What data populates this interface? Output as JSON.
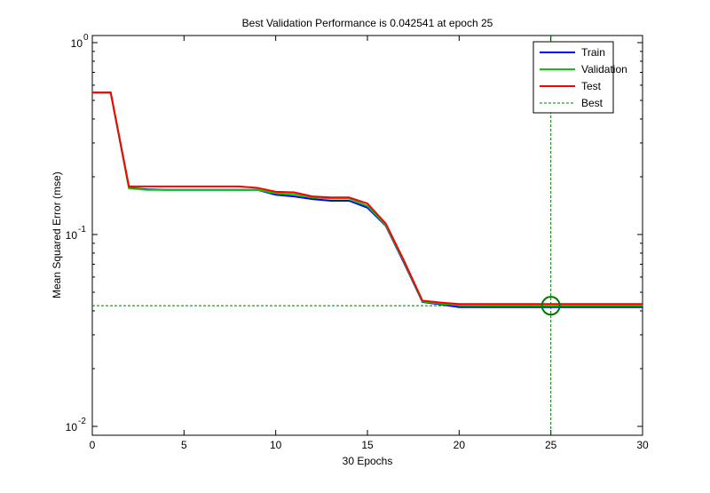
{
  "chart_data": {
    "type": "line",
    "title": "Best Validation Performance is 0.042541 at epoch 25",
    "xlabel": "30 Epochs",
    "ylabel": "Mean Squared Error  (mse)",
    "xlim": [
      0,
      30
    ],
    "ylim": [
      0.009,
      1.1
    ],
    "yscale": "log",
    "xticks": [
      0,
      5,
      10,
      15,
      20,
      25,
      30
    ],
    "xtick_labels": [
      "0",
      "5",
      "10",
      "15",
      "20",
      "25",
      "30"
    ],
    "yticks": [
      1,
      0.1,
      0.01
    ],
    "ytick_labels": [
      {
        "base": "10",
        "exp": "0"
      },
      {
        "base": "10",
        "exp": "-1"
      },
      {
        "base": "10",
        "exp": "-2"
      }
    ],
    "x": [
      0,
      1,
      2,
      3,
      4,
      5,
      6,
      7,
      8,
      9,
      10,
      11,
      12,
      13,
      14,
      15,
      16,
      17,
      18,
      19,
      20,
      21,
      22,
      23,
      24,
      25,
      26,
      27,
      28,
      29,
      30
    ],
    "series": [
      {
        "name": "Train",
        "color": "#0000ff",
        "values": [
          0.55,
          0.55,
          0.175,
          0.172,
          0.171,
          0.171,
          0.171,
          0.171,
          0.171,
          0.171,
          0.161,
          0.158,
          0.153,
          0.15,
          0.15,
          0.138,
          0.111,
          0.071,
          0.0445,
          0.0432,
          0.0418,
          0.0418,
          0.0418,
          0.0418,
          0.0418,
          0.0418,
          0.0418,
          0.0418,
          0.0418,
          0.0418,
          0.0418
        ]
      },
      {
        "name": "Validation",
        "color": "#00cc00",
        "values": [
          0.55,
          0.55,
          0.174,
          0.171,
          0.171,
          0.171,
          0.171,
          0.171,
          0.171,
          0.171,
          0.164,
          0.162,
          0.156,
          0.154,
          0.154,
          0.141,
          0.112,
          0.072,
          0.0447,
          0.0436,
          0.0428,
          0.0427,
          0.0426,
          0.0426,
          0.0426,
          0.042541,
          0.0426,
          0.0426,
          0.0426,
          0.0426,
          0.0426
        ]
      },
      {
        "name": "Test",
        "color": "#ff0000",
        "values": [
          0.55,
          0.55,
          0.178,
          0.178,
          0.178,
          0.178,
          0.178,
          0.178,
          0.178,
          0.175,
          0.167,
          0.166,
          0.158,
          0.156,
          0.156,
          0.145,
          0.114,
          0.073,
          0.0452,
          0.0442,
          0.0434,
          0.0434,
          0.0434,
          0.0434,
          0.0434,
          0.0434,
          0.0434,
          0.0434,
          0.0434,
          0.0434,
          0.0434
        ]
      }
    ],
    "best": {
      "name": "Best",
      "epoch": 25,
      "value": 0.042541,
      "color": "#007700"
    },
    "legend": "top-right",
    "grid": false
  }
}
